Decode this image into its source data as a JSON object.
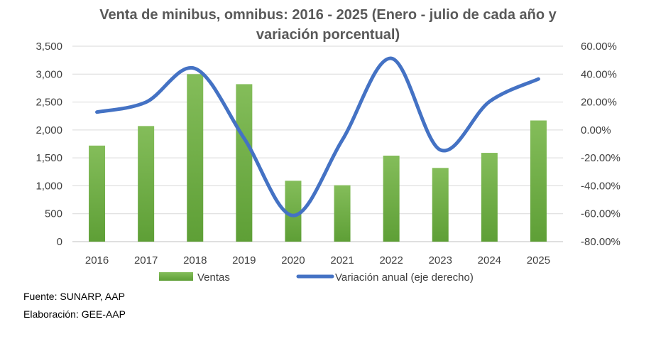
{
  "chart_data": {
    "type": "bar",
    "title_line1": "Venta de minibus, omnibus: 2016 - 2025 (Enero - julio de cada año y",
    "title_line2": "variación porcentual)",
    "categories": [
      "2016",
      "2017",
      "2018",
      "2019",
      "2020",
      "2021",
      "2022",
      "2023",
      "2024",
      "2025"
    ],
    "left_axis": {
      "min": 0,
      "max": 3500,
      "step": 500,
      "tick_labels": [
        "0",
        "500",
        "1,000",
        "1,500",
        "2,000",
        "2,500",
        "3,000",
        "3,500"
      ]
    },
    "right_axis": {
      "min": -80,
      "max": 60,
      "step": 20,
      "tick_labels": [
        "-80.00%",
        "-60.00%",
        "-40.00%",
        "-20.00%",
        "0.00%",
        "20.00%",
        "40.00%",
        "60.00%"
      ]
    },
    "series": [
      {
        "name": "Ventas",
        "type": "bar",
        "axis": "left",
        "color": "#70AD47",
        "values": [
          1720,
          2070,
          3000,
          2820,
          1090,
          1010,
          1540,
          1320,
          1590,
          2170
        ]
      },
      {
        "name": "Variación anual (eje derecho)",
        "type": "line",
        "axis": "right",
        "color": "#4472C4",
        "values": [
          12.8,
          19.9,
          44.0,
          -6.0,
          -61.3,
          -7.3,
          51.3,
          -14.3,
          20.3,
          36.5
        ]
      }
    ],
    "grid": true,
    "legend_position": "bottom"
  },
  "footer": {
    "source": "Fuente: SUNARP, AAP",
    "elaboration": "Elaboración: GEE-AAP"
  }
}
